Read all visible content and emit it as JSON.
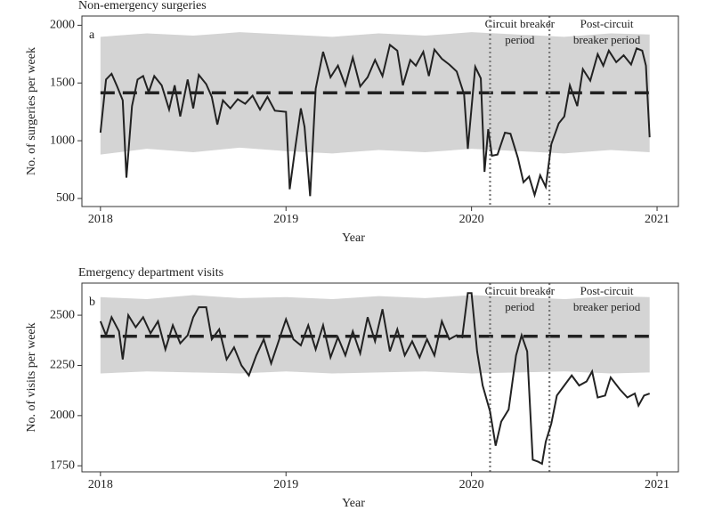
{
  "chart_data": [
    {
      "type": "line",
      "title": "Non-emergency surgeries",
      "panel_label": "a",
      "xlabel": "Year",
      "ylabel": "No. of surgeries per week",
      "color": "#222222",
      "band_color": "#d4d4d4",
      "xlim": [
        2017.9,
        2021.115
      ],
      "ylim": [
        430,
        2080
      ],
      "xticks": [
        2018,
        2019,
        2020,
        2021
      ],
      "yticks": [
        500,
        1000,
        1500,
        2000
      ],
      "x": [
        2018.0,
        2018.03,
        2018.06,
        2018.09,
        2018.12,
        2018.14,
        2018.17,
        2018.2,
        2018.23,
        2018.26,
        2018.29,
        2018.33,
        2018.37,
        2018.4,
        2018.43,
        2018.47,
        2018.5,
        2018.53,
        2018.57,
        2018.6,
        2018.63,
        2018.66,
        2018.7,
        2018.74,
        2018.78,
        2018.82,
        2018.86,
        2018.9,
        2018.94,
        2019.0,
        2019.02,
        2019.05,
        2019.08,
        2019.1,
        2019.13,
        2019.16,
        2019.2,
        2019.24,
        2019.28,
        2019.32,
        2019.36,
        2019.4,
        2019.44,
        2019.48,
        2019.52,
        2019.56,
        2019.6,
        2019.63,
        2019.67,
        2019.7,
        2019.74,
        2019.77,
        2019.8,
        2019.84,
        2019.88,
        2019.92,
        2019.96,
        2019.98,
        2020.02,
        2020.05,
        2020.07,
        2020.09,
        2020.11,
        2020.14,
        2020.18,
        2020.21,
        2020.25,
        2020.28,
        2020.31,
        2020.34,
        2020.37,
        2020.4,
        2020.43,
        2020.47,
        2020.5,
        2020.53,
        2020.57,
        2020.6,
        2020.64,
        2020.68,
        2020.71,
        2020.74,
        2020.78,
        2020.82,
        2020.86,
        2020.89,
        2020.92,
        2020.94,
        2020.96
      ],
      "values": [
        1070,
        1530,
        1580,
        1470,
        1350,
        680,
        1300,
        1530,
        1560,
        1420,
        1560,
        1480,
        1270,
        1480,
        1210,
        1530,
        1280,
        1570,
        1490,
        1380,
        1140,
        1350,
        1280,
        1360,
        1320,
        1390,
        1270,
        1380,
        1260,
        1250,
        580,
        940,
        1280,
        1120,
        520,
        1450,
        1770,
        1550,
        1650,
        1480,
        1720,
        1470,
        1550,
        1700,
        1560,
        1830,
        1780,
        1480,
        1700,
        1650,
        1770,
        1560,
        1790,
        1710,
        1660,
        1600,
        1400,
        930,
        1640,
        1540,
        730,
        1100,
        870,
        880,
        1070,
        1060,
        850,
        640,
        690,
        530,
        700,
        600,
        970,
        1150,
        1210,
        1480,
        1300,
        1620,
        1520,
        1750,
        1650,
        1780,
        1680,
        1740,
        1660,
        1800,
        1780,
        1650,
        1030
      ],
      "band": {
        "x": [
          2018.0,
          2018.25,
          2018.5,
          2018.75,
          2019.0,
          2019.25,
          2019.5,
          2019.75,
          2020.0,
          2020.25,
          2020.5,
          2020.75,
          2020.96
        ],
        "upper": [
          1900,
          1930,
          1910,
          1940,
          1920,
          1900,
          1930,
          1910,
          1940,
          1920,
          1900,
          1930,
          1920
        ],
        "lower": [
          880,
          930,
          900,
          940,
          910,
          890,
          920,
          900,
          930,
          910,
          890,
          920,
          900
        ]
      },
      "mean": 1415,
      "phase_lines": [
        2020.1,
        2020.42
      ],
      "annotations": [
        [
          "Circuit breaker",
          "period"
        ],
        [
          "Post-circuit",
          "breaker period"
        ]
      ]
    },
    {
      "type": "line",
      "title": "Emergency department visits",
      "panel_label": "b",
      "xlabel": "Year",
      "ylabel": "No. of visits per week",
      "color": "#222222",
      "band_color": "#d4d4d4",
      "xlim": [
        2017.9,
        2021.115
      ],
      "ylim": [
        1720,
        2660
      ],
      "xticks": [
        2018,
        2019,
        2020,
        2021
      ],
      "yticks": [
        1750,
        2000,
        2250,
        2500
      ],
      "x": [
        2018.0,
        2018.03,
        2018.06,
        2018.1,
        2018.12,
        2018.15,
        2018.19,
        2018.23,
        2018.27,
        2018.31,
        2018.35,
        2018.39,
        2018.43,
        2018.47,
        2018.5,
        2018.53,
        2018.57,
        2018.6,
        2018.64,
        2018.68,
        2018.72,
        2018.76,
        2018.8,
        2018.84,
        2018.88,
        2018.92,
        2019.0,
        2019.04,
        2019.08,
        2019.12,
        2019.16,
        2019.2,
        2019.24,
        2019.28,
        2019.32,
        2019.36,
        2019.4,
        2019.44,
        2019.48,
        2019.52,
        2019.56,
        2019.6,
        2019.64,
        2019.68,
        2019.72,
        2019.76,
        2019.8,
        2019.84,
        2019.88,
        2019.92,
        2019.95,
        2019.98,
        2020.0,
        2020.03,
        2020.06,
        2020.1,
        2020.13,
        2020.16,
        2020.2,
        2020.24,
        2020.27,
        2020.3,
        2020.33,
        2020.36,
        2020.38,
        2020.4,
        2020.43,
        2020.46,
        2020.5,
        2020.54,
        2020.58,
        2020.62,
        2020.65,
        2020.68,
        2020.72,
        2020.75,
        2020.8,
        2020.84,
        2020.88,
        2020.9,
        2020.93,
        2020.96
      ],
      "values": [
        2470,
        2400,
        2490,
        2420,
        2280,
        2500,
        2440,
        2490,
        2410,
        2470,
        2330,
        2450,
        2360,
        2400,
        2490,
        2540,
        2540,
        2380,
        2430,
        2280,
        2340,
        2250,
        2200,
        2300,
        2380,
        2260,
        2480,
        2380,
        2350,
        2450,
        2330,
        2450,
        2290,
        2390,
        2300,
        2420,
        2310,
        2490,
        2370,
        2530,
        2320,
        2430,
        2300,
        2370,
        2290,
        2380,
        2300,
        2470,
        2380,
        2400,
        2390,
        2610,
        2610,
        2320,
        2150,
        2020,
        1850,
        1970,
        2030,
        2300,
        2400,
        2320,
        1780,
        1770,
        1760,
        1870,
        1960,
        2100,
        2150,
        2200,
        2150,
        2170,
        2220,
        2090,
        2100,
        2190,
        2130,
        2090,
        2110,
        2050,
        2100,
        2110
      ],
      "band": {
        "x": [
          2018.0,
          2018.25,
          2018.5,
          2018.75,
          2019.0,
          2019.25,
          2019.5,
          2019.75,
          2020.0,
          2020.25,
          2020.5,
          2020.75,
          2020.96
        ],
        "upper": [
          2590,
          2580,
          2600,
          2585,
          2590,
          2580,
          2595,
          2585,
          2600,
          2590,
          2580,
          2595,
          2590
        ],
        "lower": [
          2210,
          2220,
          2215,
          2210,
          2220,
          2210,
          2215,
          2220,
          2210,
          2215,
          2220,
          2210,
          2215
        ]
      },
      "mean": 2395,
      "phase_lines": [
        2020.1,
        2020.42
      ],
      "annotations": [
        [
          "Circuit breaker",
          "period"
        ],
        [
          "Post-circuit",
          "breaker period"
        ]
      ]
    }
  ]
}
